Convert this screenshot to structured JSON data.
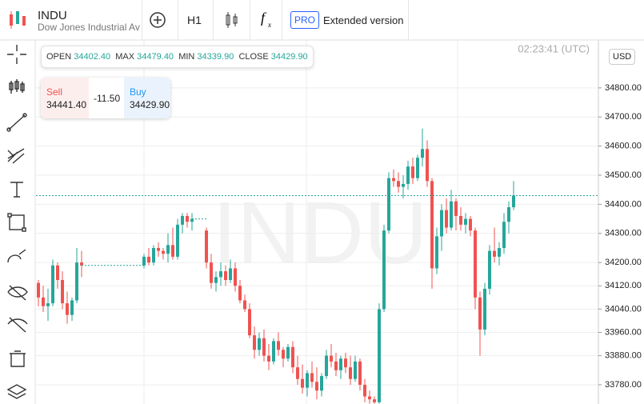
{
  "header": {
    "symbol": "INDU",
    "name": "Dow Jones Industrial Ave",
    "timeframe": "H1",
    "pro_badge": "PRO",
    "extended": "Extended version"
  },
  "ohlc_bar": {
    "open_label": "OPEN",
    "open": "34402.40",
    "max_label": "MAX",
    "max": "34479.40",
    "min_label": "MIN",
    "min": "34339.90",
    "close_label": "CLOSE",
    "close": "34429.90"
  },
  "trade": {
    "sell_label": "Sell",
    "sell": "34441.40",
    "spread": "-11.50",
    "buy_label": "Buy",
    "buy": "34429.90"
  },
  "clock": "02:23:41 (UTC)",
  "currency": "USD",
  "chart_data": {
    "type": "candlestick",
    "up_color": "#26a69a",
    "down_color": "#ef5350",
    "grid": true,
    "ylim": [
      33714,
      34970
    ],
    "yticks": [
      {
        "value": 34800,
        "label": "34800.00"
      },
      {
        "value": 34700,
        "label": "34700.00"
      },
      {
        "value": 34600,
        "label": "34600.00"
      },
      {
        "value": 34500,
        "label": "34500.00"
      },
      {
        "value": 34400,
        "label": "34400.00"
      },
      {
        "value": 34300,
        "label": "34300.00"
      },
      {
        "value": 34200,
        "label": "34200.00"
      },
      {
        "value": 34120,
        "label": "34120.00"
      },
      {
        "value": 34040,
        "label": "34040.00"
      },
      {
        "value": 33960,
        "label": "33960.00"
      },
      {
        "value": 33880,
        "label": "33880.00"
      },
      {
        "value": 33780,
        "label": "33780.00"
      }
    ],
    "ohlc": [
      [
        34130,
        34140,
        34050,
        34080
      ],
      [
        34080,
        34120,
        34030,
        34050
      ],
      [
        34050,
        34110,
        34000,
        34060
      ],
      [
        34060,
        34210,
        34050,
        34190
      ],
      [
        34190,
        34200,
        34110,
        34140
      ],
      [
        34140,
        34170,
        34040,
        34060
      ],
      [
        34060,
        34100,
        33990,
        34020
      ],
      [
        34020,
        34080,
        34000,
        34070
      ],
      [
        34070,
        34250,
        34060,
        34200
      ],
      [
        34200,
        34240,
        34150,
        34190
      ],
      null,
      null,
      null,
      null,
      null,
      null,
      null,
      null,
      null,
      null,
      null,
      null,
      [
        34190,
        34230,
        34180,
        34220
      ],
      [
        34220,
        34250,
        34190,
        34200
      ],
      [
        34200,
        34260,
        34190,
        34250
      ],
      [
        34250,
        34270,
        34220,
        34240
      ],
      [
        34240,
        34250,
        34210,
        34230
      ],
      [
        34230,
        34300,
        34200,
        34260
      ],
      [
        34260,
        34320,
        34210,
        34220
      ],
      [
        34220,
        34350,
        34210,
        34330
      ],
      [
        34330,
        34370,
        34300,
        34360
      ],
      [
        34360,
        34370,
        34320,
        34340
      ],
      [
        34340,
        34370,
        34310,
        34350
      ],
      null,
      null,
      [
        34310,
        34320,
        34180,
        34200
      ],
      [
        34200,
        34230,
        34110,
        34130
      ],
      [
        34130,
        34170,
        34100,
        34150
      ],
      [
        34150,
        34200,
        34120,
        34170
      ],
      [
        34170,
        34190,
        34120,
        34140
      ],
      [
        34140,
        34210,
        34130,
        34180
      ],
      [
        34180,
        34200,
        34100,
        34120
      ],
      [
        34120,
        34140,
        34060,
        34070
      ],
      [
        34070,
        34090,
        34030,
        34040
      ],
      [
        34040,
        34060,
        33940,
        33950
      ],
      [
        33950,
        33980,
        33870,
        33900
      ],
      [
        33900,
        33960,
        33880,
        33940
      ],
      [
        33940,
        33970,
        33860,
        33880
      ],
      [
        33880,
        33920,
        33830,
        33860
      ],
      [
        33860,
        33940,
        33850,
        33930
      ],
      [
        33930,
        33960,
        33880,
        33900
      ],
      [
        33900,
        33910,
        33840,
        33870
      ],
      [
        33870,
        33920,
        33860,
        33910
      ],
      [
        33910,
        33930,
        33820,
        33840
      ],
      [
        33840,
        33880,
        33780,
        33800
      ],
      [
        33800,
        33850,
        33750,
        33770
      ],
      [
        33770,
        33830,
        33740,
        33820
      ],
      [
        33820,
        33860,
        33770,
        33790
      ],
      [
        33790,
        33840,
        33730,
        33760
      ],
      [
        33760,
        33820,
        33740,
        33810
      ],
      [
        33810,
        33900,
        33800,
        33880
      ],
      [
        33880,
        33920,
        33840,
        33860
      ],
      [
        33860,
        33890,
        33810,
        33830
      ],
      [
        33830,
        33880,
        33800,
        33870
      ],
      [
        33870,
        33890,
        33820,
        33840
      ],
      [
        33840,
        33880,
        33780,
        33800
      ],
      [
        33800,
        33880,
        33790,
        33860
      ],
      [
        33860,
        33870,
        33760,
        33780
      ],
      [
        33780,
        33800,
        33720,
        33740
      ],
      [
        33740,
        33760,
        33715,
        33730
      ],
      [
        33730,
        33740,
        33715,
        33720
      ],
      [
        33720,
        34060,
        33715,
        34040
      ],
      [
        34040,
        34330,
        34030,
        34310
      ],
      [
        34310,
        34510,
        34300,
        34490
      ],
      [
        34490,
        34520,
        34460,
        34480
      ],
      [
        34480,
        34510,
        34440,
        34460
      ],
      [
        34460,
        34500,
        34420,
        34470
      ],
      [
        34470,
        34550,
        34450,
        34530
      ],
      [
        34530,
        34560,
        34470,
        34490
      ],
      [
        34490,
        34570,
        34480,
        34560
      ],
      [
        34560,
        34660,
        34530,
        34590
      ],
      [
        34590,
        34620,
        34460,
        34480
      ],
      [
        34480,
        34490,
        34110,
        34180
      ],
      [
        34180,
        34320,
        34160,
        34290
      ],
      [
        34290,
        34400,
        34240,
        34380
      ],
      [
        34380,
        34420,
        34300,
        34320
      ],
      [
        34320,
        34450,
        34310,
        34410
      ],
      [
        34410,
        34420,
        34310,
        34360
      ],
      [
        34360,
        34390,
        34310,
        34330
      ],
      [
        34330,
        34370,
        34300,
        34350
      ],
      [
        34350,
        34360,
        34290,
        34310
      ],
      [
        34310,
        34320,
        34040,
        34080
      ],
      [
        34080,
        34100,
        33880,
        33970
      ],
      [
        33970,
        34130,
        33950,
        34110
      ],
      [
        34110,
        34260,
        34090,
        34240
      ],
      [
        34240,
        34320,
        34200,
        34220
      ],
      [
        34220,
        34270,
        34190,
        34250
      ],
      [
        34250,
        34370,
        34230,
        34340
      ],
      [
        34340,
        34410,
        34300,
        34390
      ],
      [
        34390,
        34480,
        34380,
        34430
      ]
    ]
  }
}
